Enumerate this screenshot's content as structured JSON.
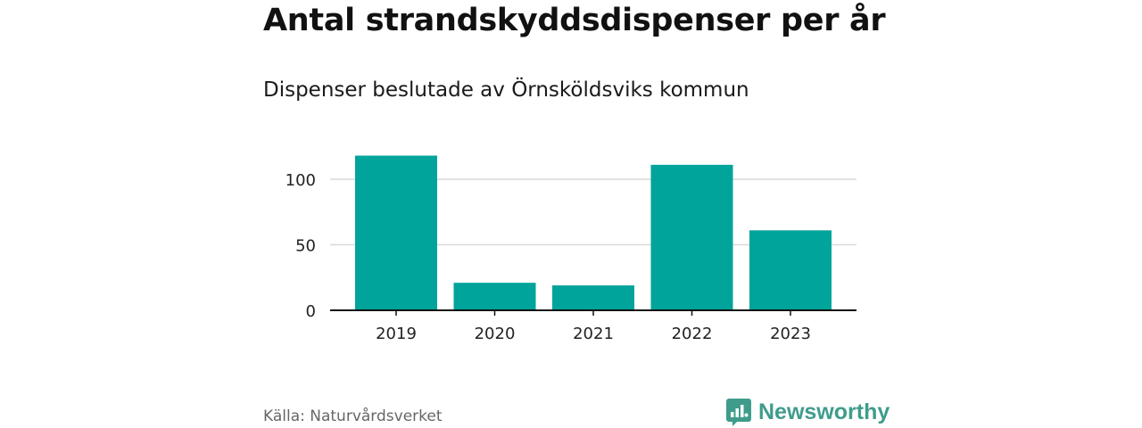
{
  "header": {
    "title": "Antal strandskyddsdispenser per år",
    "subtitle": "Dispenser beslutade av Örnsköldsviks kommun"
  },
  "footer": {
    "source": "Källa: Naturvårdsverket",
    "brand": "Newsworthy",
    "brand_icon": "newsworthy-logo-icon"
  },
  "colors": {
    "bar": "#00a49a",
    "grid": "#d9d9d9",
    "axis": "#111111",
    "brand": "#3f9c8c"
  },
  "chart_data": {
    "type": "bar",
    "categories": [
      "2019",
      "2020",
      "2021",
      "2022",
      "2023"
    ],
    "values": [
      118,
      21,
      19,
      111,
      61
    ],
    "yticks": [
      "0",
      "50",
      "100"
    ],
    "ytick_values": [
      0,
      50,
      100
    ],
    "ylim": [
      0,
      130
    ],
    "grid": true,
    "xlabel": "",
    "ylabel": ""
  }
}
